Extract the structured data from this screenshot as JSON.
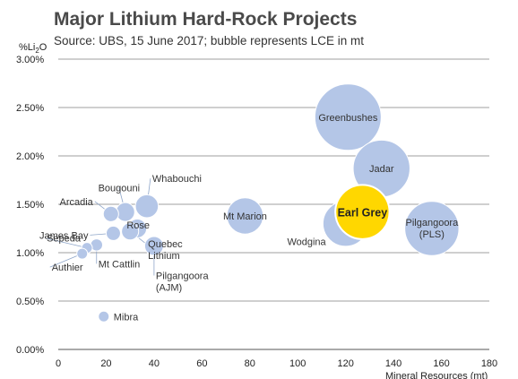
{
  "header": {
    "title": "Major Lithium Hard-Rock Projects",
    "subtitle": "Source: UBS, 15 June 2017; bubble represents LCE in mt"
  },
  "colors": {
    "bubble": "#b4c6e7",
    "highlight": "#ffd700",
    "highlight_stroke": "#ffffff",
    "text": "#333333"
  },
  "chart_data": {
    "type": "scatter",
    "title": "Major Lithium Hard-Rock Projects",
    "subtitle": "Source: UBS, 15 June 2017; bubble represents LCE in mt",
    "ylabel_main": "%Li",
    "ylabel_sub": "2",
    "ylabel_tail": "O",
    "xlabel": "",
    "xlim": [
      0,
      180
    ],
    "ylim": [
      0,
      3.0
    ],
    "x_ticks": [
      0,
      20,
      40,
      60,
      80,
      100,
      120,
      140,
      160,
      180
    ],
    "y_ticks": [
      {
        "value": 0.0,
        "label": "0.00%"
      },
      {
        "value": 0.5,
        "label": "0.50%"
      },
      {
        "value": 1.0,
        "label": "1.00%"
      },
      {
        "value": 1.5,
        "label": "1.50%"
      },
      {
        "value": 2.0,
        "label": "2.00%"
      },
      {
        "value": 2.5,
        "label": "2.50%"
      },
      {
        "value": 3.0,
        "label": "3.00%"
      }
    ],
    "grid": true,
    "points": [
      {
        "name": "Greenbushes",
        "x": 121,
        "y": 2.4,
        "size": 15,
        "highlight": false
      },
      {
        "name": "Jadar",
        "x": 135,
        "y": 1.87,
        "size": 11,
        "highlight": false
      },
      {
        "name": "Wodgina",
        "x": 120,
        "y": 1.3,
        "size": 7,
        "highlight": false
      },
      {
        "name": "Earl Grey",
        "x": 127,
        "y": 1.42,
        "size": 10,
        "highlight": true
      },
      {
        "name": "Pilgangoora (PLS)",
        "x": 156,
        "y": 1.25,
        "size": 10,
        "highlight": false
      },
      {
        "name": "Mt Marion",
        "x": 78,
        "y": 1.38,
        "size": 4.5,
        "highlight": false
      },
      {
        "name": "Whabouchi",
        "x": 37,
        "y": 1.48,
        "size": 1.8,
        "highlight": false
      },
      {
        "name": "Bougouni",
        "x": 28,
        "y": 1.42,
        "size": 1.2,
        "highlight": false
      },
      {
        "name": "Arcadia",
        "x": 22,
        "y": 1.4,
        "size": 0.8,
        "highlight": false
      },
      {
        "name": "Rose",
        "x": 33,
        "y": 1.25,
        "size": 1.2,
        "highlight": false
      },
      {
        "name": "James Bay",
        "x": 23,
        "y": 1.2,
        "size": 0.7,
        "highlight": false
      },
      {
        "name": "Quebec Lithium",
        "x": 30,
        "y": 1.22,
        "size": 1.0,
        "highlight": false
      },
      {
        "name": "Pilgangoora (AJM)",
        "x": 40,
        "y": 1.07,
        "size": 1.2,
        "highlight": false
      },
      {
        "name": "Mt Cattlin",
        "x": 16,
        "y": 1.08,
        "size": 0.5,
        "highlight": false
      },
      {
        "name": "Sepeda",
        "x": 12,
        "y": 1.05,
        "size": 0.3,
        "highlight": false
      },
      {
        "name": "Authier",
        "x": 10,
        "y": 0.99,
        "size": 0.3,
        "highlight": false
      },
      {
        "name": "Mibra",
        "x": 19,
        "y": 0.34,
        "size": 0.2,
        "highlight": false
      }
    ],
    "xlabel_partial": "Mineral Resources (mt)"
  }
}
